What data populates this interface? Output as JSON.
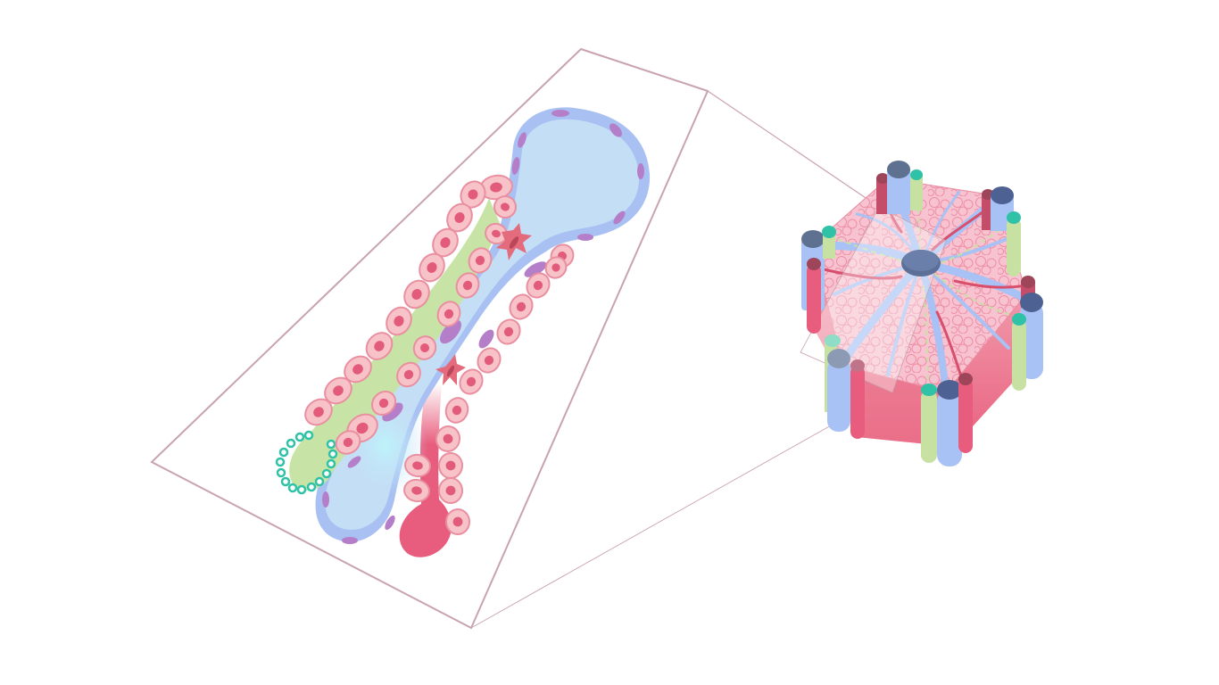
{
  "figure": {
    "subject": "liver-lobule-sinusoid-illustration",
    "colors": {
      "frame": "#c9a3ad",
      "sinusoid_fill": "#c4def5",
      "sinusoid_edge": "#a8c0f2",
      "endothelial_nucleus": "#b57ec9",
      "hepatocyte_fill": "#f7c3c9",
      "hepatocyte_edge": "#e98fa0",
      "hepatocyte_nucleus": "#e35b7a",
      "bile_canaliculus": "#c8e3a6",
      "bile_duct_ring": "#2fc2a6",
      "stellate_cell": "#e46b7c",
      "arteriole": "#e85d7d",
      "central_vein": "#5b6f97",
      "portal_vein": "#a9c2f5",
      "bile_duct": "#c7e1a3",
      "lobule_top": "#f8c0cf",
      "lobule_side": "#ee7d93"
    }
  }
}
